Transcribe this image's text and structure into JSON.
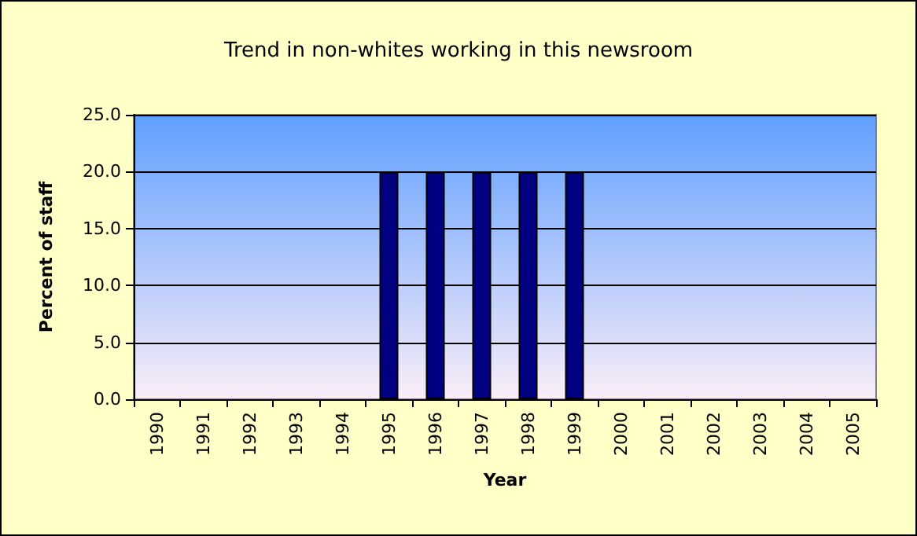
{
  "chart_data": {
    "type": "bar",
    "title": "Trend in non-whites working in this newsroom",
    "xlabel": "Year",
    "ylabel": "Percent of staff",
    "categories": [
      "1990",
      "1991",
      "1992",
      "1993",
      "1994",
      "1995",
      "1996",
      "1997",
      "1998",
      "1999",
      "2000",
      "2001",
      "2002",
      "2003",
      "2004",
      "2005"
    ],
    "values": [
      null,
      null,
      null,
      null,
      null,
      20,
      20,
      20,
      20,
      20,
      null,
      null,
      null,
      null,
      null,
      null
    ],
    "color": "#000080",
    "ylim": [
      0,
      25
    ],
    "yticks": [
      {
        "value": 0,
        "label": "0.0"
      },
      {
        "value": 5,
        "label": "5.0"
      },
      {
        "value": 10,
        "label": "10.0"
      },
      {
        "value": 15,
        "label": "15.0"
      },
      {
        "value": 20,
        "label": "20.0"
      },
      {
        "value": 25,
        "label": "25.0"
      }
    ],
    "grid": "y"
  }
}
